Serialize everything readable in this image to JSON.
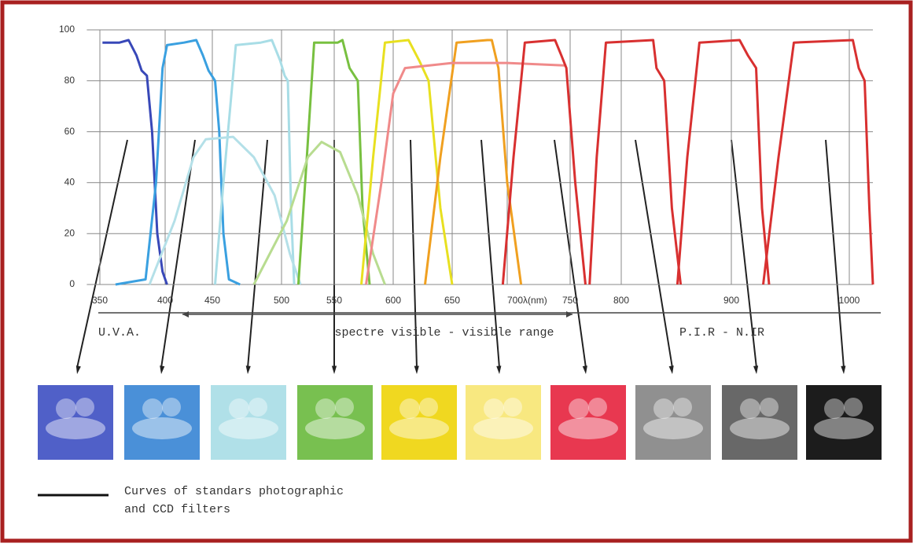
{
  "chart_data": {
    "type": "line",
    "xlim": [
      340,
      1020
    ],
    "xticks": [
      350,
      400,
      450,
      500,
      550,
      600,
      650,
      {
        "value": 700,
        "label": "700λ(nm)"
      },
      750,
      800,
      900,
      1000
    ],
    "ylim": [
      0,
      100
    ],
    "yticks": [
      0,
      20,
      40,
      60,
      80,
      100
    ],
    "grid": true,
    "series": [
      {
        "color": "#3848b8",
        "x": [
          352,
          365,
          372,
          378,
          382,
          386,
          390,
          394,
          398,
          402
        ],
        "values": [
          95,
          95,
          96,
          90,
          84,
          82,
          60,
          20,
          5,
          0
        ]
      },
      {
        "color": "#3aa0e0",
        "x": [
          362,
          385,
          393,
          398,
          402,
          420,
          433,
          440,
          446,
          452,
          455,
          458,
          462,
          470
        ],
        "values": [
          0,
          2,
          40,
          85,
          94,
          95,
          96,
          90,
          84,
          80,
          60,
          20,
          2,
          0
        ]
      },
      {
        "color": "#a8dde6",
        "x": [
          452,
          458,
          467,
          485,
          493,
          499,
          503,
          506,
          509,
          512
        ],
        "values": [
          0,
          40,
          94,
          95,
          96,
          88,
          82,
          80,
          30,
          0
        ]
      },
      {
        "color": "#b4e0e8",
        "x": [
          388,
          410,
          430,
          443,
          465,
          480,
          495,
          508,
          518
        ],
        "values": [
          0,
          25,
          50,
          57,
          58,
          50,
          35,
          12,
          0
        ]
      },
      {
        "color": "#78c040",
        "x": [
          516,
          524,
          531,
          553,
          557,
          563,
          570,
          574,
          580
        ],
        "values": [
          0,
          50,
          95,
          95,
          96,
          85,
          80,
          30,
          0
        ]
      },
      {
        "color": "#b8dc90",
        "x": [
          480,
          505,
          525,
          538,
          555,
          570,
          583,
          593
        ],
        "values": [
          0,
          25,
          50,
          56,
          52,
          35,
          12,
          0
        ]
      },
      {
        "color": "#e8e020",
        "x": [
          573,
          583,
          593,
          613,
          622,
          630,
          640,
          650
        ],
        "values": [
          0,
          50,
          95,
          96,
          88,
          80,
          30,
          0
        ]
      },
      {
        "color": "#f0a020",
        "x": [
          627,
          640,
          654,
          682,
          686,
          692,
          700,
          711
        ],
        "values": [
          0,
          50,
          95,
          96,
          96,
          85,
          40,
          0
        ]
      },
      {
        "color": "#f08a8a",
        "x": [
          577,
          590,
          600,
          610,
          650,
          700,
          747
        ],
        "values": [
          0,
          40,
          75,
          85,
          87,
          87,
          86
        ]
      },
      {
        "color": "#d83030",
        "x": [
          696,
          705,
          714,
          738,
          743,
          747,
          755,
          765
        ],
        "values": [
          0,
          50,
          95,
          96,
          90,
          85,
          40,
          0
        ]
      },
      {
        "color": "#d83030",
        "x": [
          769,
          776,
          785,
          829,
          832,
          839,
          846,
          854
        ],
        "values": [
          0,
          50,
          95,
          96,
          85,
          80,
          30,
          0
        ]
      },
      {
        "color": "#d83030",
        "x": [
          851,
          860,
          871,
          907,
          914,
          921,
          926,
          932
        ],
        "values": [
          0,
          50,
          95,
          96,
          90,
          85,
          30,
          0
        ]
      },
      {
        "color": "#d83030",
        "x": [
          927,
          940,
          953,
          1003,
          1008,
          1013,
          1017,
          1020
        ],
        "values": [
          0,
          50,
          95,
          96,
          85,
          80,
          30,
          0
        ]
      }
    ],
    "region_labels": [
      "U.V.A.",
      "spectre visible - visible range",
      "P.I.R - N.IR"
    ],
    "legend_note": [
      "Curves of standars photographic",
      "and CCD filters"
    ]
  }
}
